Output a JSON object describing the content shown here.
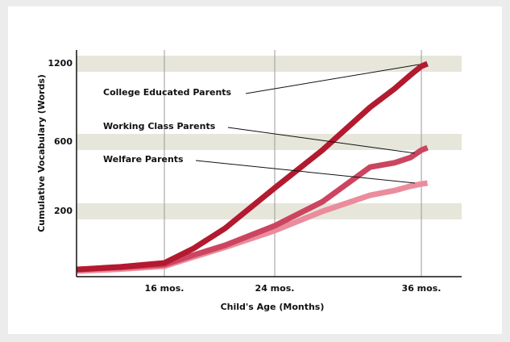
{
  "chart_data": {
    "type": "line",
    "x_label": "Child's Age (Months)",
    "y_label": "Cumulative Vocabulary (Words)",
    "x": [
      9.6,
      12.8,
      16,
      18.1,
      20.4,
      24,
      27.9,
      31.8,
      33.8,
      35.1,
      36,
      36.5
    ],
    "series": [
      {
        "name": "College Educated Parents",
        "color": "#b3192f",
        "values": [
          22,
          30,
          42,
          86,
          148,
          335,
          553,
          866,
          1008,
          1113,
          1181,
          1200
        ]
      },
      {
        "name": "Working Class Parents",
        "color": "#cc4560",
        "values": [
          22,
          28,
          37,
          66,
          96,
          156,
          255,
          455,
          480,
          510,
          553,
          567
        ]
      },
      {
        "name": "Welfare Parents",
        "color": "#eb8c9d",
        "values": [
          17,
          23,
          32,
          60,
          90,
          141,
          200,
          293,
          320,
          345,
          358,
          363
        ]
      }
    ],
    "xlim": [
      9.6,
      39.3
    ],
    "xticks": [
      {
        "value": 16,
        "label": "16 mos."
      },
      {
        "value": 24,
        "label": "24 mos."
      },
      {
        "value": 36,
        "label": "36 mos."
      }
    ],
    "ylim": [
      0,
      1300
    ],
    "yticks": [
      200,
      600,
      1200
    ],
    "grid": true
  }
}
